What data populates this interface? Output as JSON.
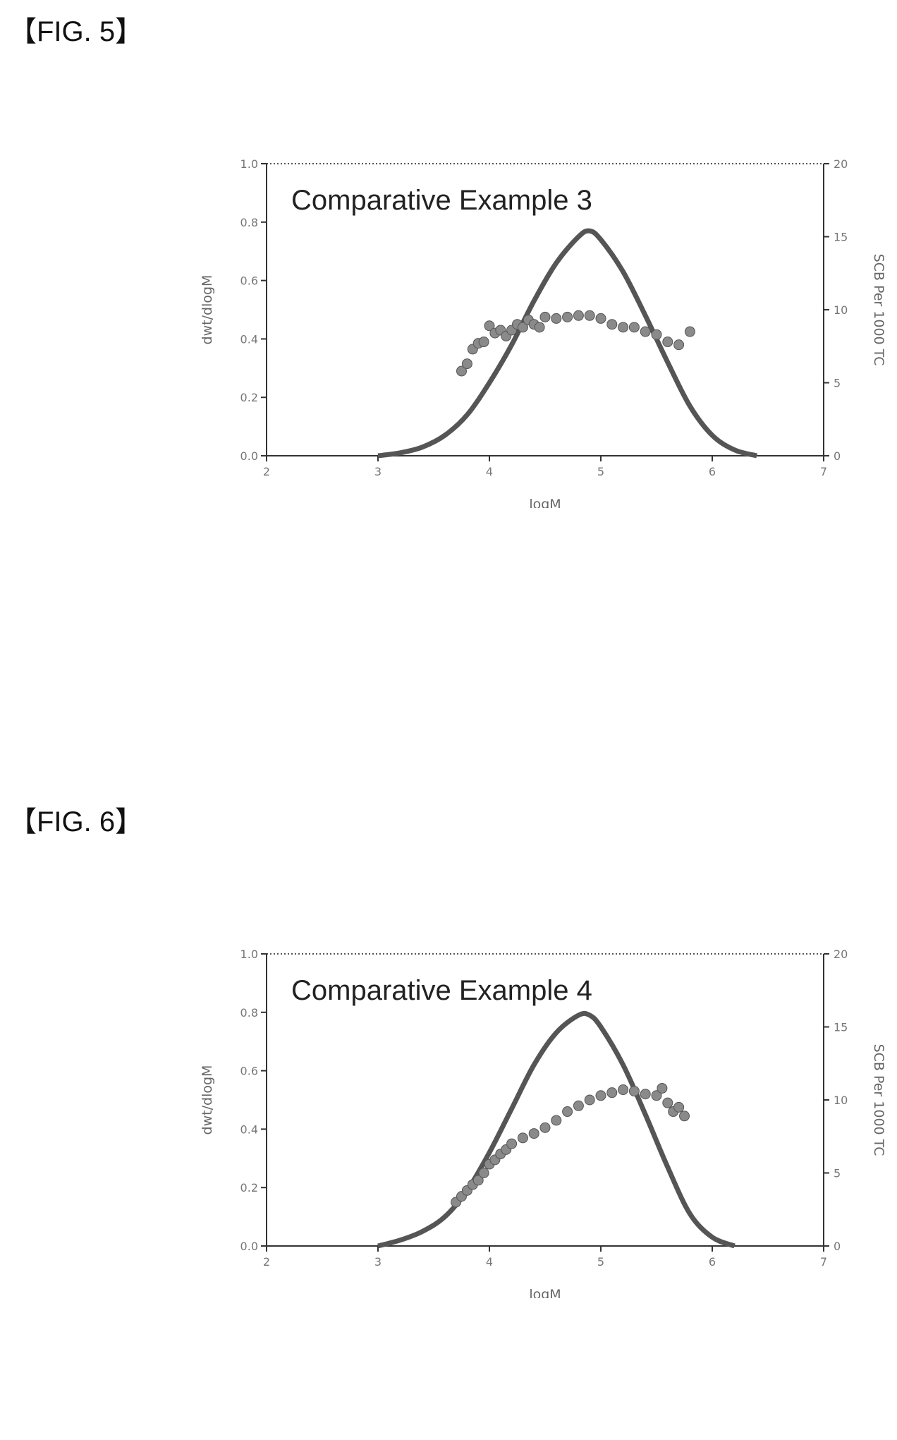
{
  "figures": [
    {
      "label": "【FIG. 5】",
      "chart_data": {
        "type": "line",
        "title": "Comparative Example 3",
        "xlabel": "logM",
        "ylabel": "dwt/dlogM",
        "y2label": "SCB Per 1000 TC",
        "xlim": [
          2,
          7
        ],
        "ylim": [
          0,
          1.0
        ],
        "y2lim": [
          0,
          20
        ],
        "x_ticks": [
          "2",
          "3",
          "4",
          "5",
          "6",
          "7"
        ],
        "y_ticks": [
          "0.0",
          "0.2",
          "0.4",
          "0.6",
          "0.8",
          "1.0"
        ],
        "y2_ticks": [
          "0",
          "5",
          "10",
          "15",
          "20"
        ],
        "series": [
          {
            "name": "",
            "axis": "left",
            "kind": "line",
            "x": [
              3.0,
              3.2,
              3.4,
              3.6,
              3.8,
              4.0,
              4.2,
              4.4,
              4.6,
              4.8,
              4.9,
              5.0,
              5.2,
              5.4,
              5.6,
              5.8,
              6.0,
              6.2,
              6.4
            ],
            "y": [
              0.0,
              0.01,
              0.03,
              0.07,
              0.14,
              0.25,
              0.38,
              0.53,
              0.66,
              0.75,
              0.77,
              0.74,
              0.63,
              0.48,
              0.32,
              0.17,
              0.07,
              0.02,
              0.0
            ]
          },
          {
            "name": "",
            "axis": "right",
            "kind": "scatter",
            "x": [
              3.75,
              3.8,
              3.85,
              3.9,
              3.95,
              4.0,
              4.05,
              4.1,
              4.15,
              4.2,
              4.25,
              4.3,
              4.35,
              4.4,
              4.45,
              4.5,
              4.6,
              4.7,
              4.8,
              4.9,
              5.0,
              5.1,
              5.2,
              5.3,
              5.4,
              5.5,
              5.6,
              5.7,
              5.8
            ],
            "y": [
              5.8,
              6.3,
              7.3,
              7.7,
              7.8,
              8.9,
              8.4,
              8.6,
              8.2,
              8.6,
              9.0,
              8.8,
              9.3,
              9.0,
              8.8,
              9.5,
              9.4,
              9.5,
              9.6,
              9.6,
              9.4,
              9.0,
              8.8,
              8.8,
              8.5,
              8.3,
              7.8,
              7.6,
              8.5
            ]
          }
        ]
      }
    },
    {
      "label": "【FIG. 6】",
      "chart_data": {
        "type": "line",
        "title": "Comparative Example 4",
        "xlabel": "logM",
        "ylabel": "dwt/dlogM",
        "y2label": "SCB Per 1000 TC",
        "xlim": [
          2,
          7
        ],
        "ylim": [
          0,
          1.0
        ],
        "y2lim": [
          0,
          20
        ],
        "x_ticks": [
          "2",
          "3",
          "4",
          "5",
          "6",
          "7"
        ],
        "y_ticks": [
          "0.0",
          "0.2",
          "0.4",
          "0.6",
          "0.8",
          "1.0"
        ],
        "y2_ticks": [
          "0",
          "5",
          "10",
          "15",
          "20"
        ],
        "series": [
          {
            "name": "",
            "axis": "left",
            "kind": "line",
            "x": [
              3.0,
              3.2,
              3.4,
              3.6,
              3.8,
              4.0,
              4.2,
              4.4,
              4.6,
              4.8,
              4.9,
              5.0,
              5.2,
              5.4,
              5.6,
              5.8,
              6.0,
              6.2
            ],
            "y": [
              0.0,
              0.02,
              0.05,
              0.1,
              0.19,
              0.32,
              0.47,
              0.62,
              0.73,
              0.79,
              0.79,
              0.75,
              0.62,
              0.45,
              0.27,
              0.11,
              0.03,
              0.0
            ]
          },
          {
            "name": "",
            "axis": "right",
            "kind": "scatter",
            "x": [
              3.7,
              3.75,
              3.8,
              3.85,
              3.9,
              3.95,
              4.0,
              4.05,
              4.1,
              4.15,
              4.2,
              4.3,
              4.4,
              4.5,
              4.6,
              4.7,
              4.8,
              4.9,
              5.0,
              5.1,
              5.2,
              5.3,
              5.4,
              5.5,
              5.55,
              5.6,
              5.65,
              5.7,
              5.75
            ],
            "y": [
              3.0,
              3.4,
              3.8,
              4.2,
              4.5,
              5.0,
              5.6,
              5.9,
              6.3,
              6.6,
              7.0,
              7.4,
              7.7,
              8.1,
              8.6,
              9.2,
              9.6,
              10.0,
              10.3,
              10.5,
              10.7,
              10.6,
              10.4,
              10.3,
              10.8,
              9.8,
              9.2,
              9.5,
              8.9
            ]
          }
        ]
      }
    }
  ]
}
